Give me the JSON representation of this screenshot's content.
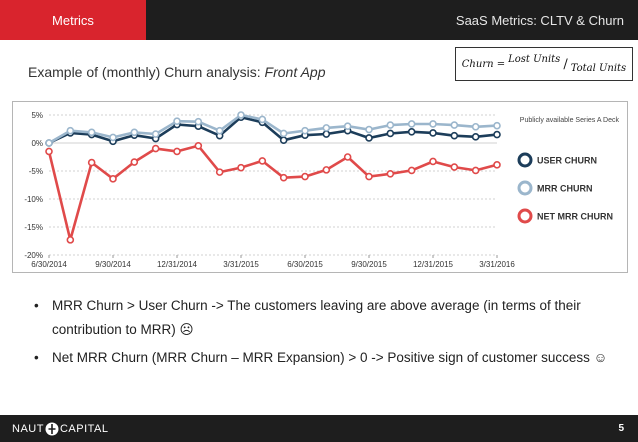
{
  "header": {
    "tab_label": "Metrics",
    "title": "SaaS Metrics: CLTV & Churn"
  },
  "formula": {
    "lhs": "Churn =",
    "numerator": "Lost Units",
    "denominator": "Total Units"
  },
  "subtitle": {
    "prefix": "Example of (monthly) Churn analysis: ",
    "company": "Front App"
  },
  "chart_data": {
    "type": "line",
    "source_note": "Publicly available Series A Deck",
    "x": [
      "6/30/2014",
      "7/31/2014",
      "8/31/2014",
      "9/30/2014",
      "10/31/2014",
      "11/30/2014",
      "12/31/2014",
      "1/31/2015",
      "2/28/2015",
      "3/31/2015",
      "4/30/2015",
      "5/31/2015",
      "6/30/2015",
      "7/31/2015",
      "8/31/2015",
      "9/30/2015",
      "10/31/2015",
      "11/30/2015",
      "12/31/2015",
      "1/31/2016",
      "2/29/2016",
      "3/31/2016"
    ],
    "xtick_labels": [
      "6/30/2014",
      "9/30/2014",
      "12/31/2014",
      "3/31/2015",
      "6/30/2015",
      "9/30/2015",
      "12/31/2015",
      "3/31/2016"
    ],
    "ytick_labels": [
      "5%",
      "0%",
      "-5%",
      "-10%",
      "-15%",
      "-20%"
    ],
    "ylim": [
      -20,
      5
    ],
    "grid": true,
    "legend_position": "right",
    "series": [
      {
        "name": "USER CHURN",
        "color": "#1c3d5a",
        "values": [
          0,
          1.8,
          1.5,
          0.3,
          1.4,
          0.8,
          3.3,
          3.0,
          1.3,
          4.6,
          3.7,
          0.5,
          1.4,
          1.6,
          2.2,
          0.9,
          1.7,
          2.0,
          1.8,
          1.3,
          1.1,
          1.5
        ]
      },
      {
        "name": "MRR CHURN",
        "color": "#9bb6cc",
        "values": [
          0,
          2.2,
          1.9,
          1.0,
          1.9,
          1.6,
          3.9,
          3.8,
          2.2,
          5.0,
          4.2,
          1.7,
          2.2,
          2.7,
          3.0,
          2.4,
          3.2,
          3.4,
          3.4,
          3.2,
          2.9,
          3.1
        ]
      },
      {
        "name": "NET MRR CHURN",
        "color": "#e04a4a",
        "values": [
          -1.5,
          -17.3,
          -3.5,
          -6.4,
          -3.4,
          -1.0,
          -1.5,
          -0.5,
          -5.2,
          -4.4,
          -3.2,
          -6.2,
          -6.0,
          -4.8,
          -2.5,
          -6.0,
          -5.5,
          -4.9,
          -3.3,
          -4.3,
          -4.9,
          -3.9
        ]
      }
    ]
  },
  "bullets": [
    {
      "marker": "•",
      "text": "MRR Churn > User Churn -> The customers leaving are above average (in terms of their contribution to MRR) ☹"
    },
    {
      "marker": "•",
      "text": "Net MRR Churn (MRR Churn – MRR Expansion) > 0 -> Positive sign of customer success ☺"
    }
  ],
  "footer": {
    "logo_left": "NAUT",
    "logo_right": "CAPITAL",
    "page_number": "5"
  },
  "colors": {
    "accent_red": "#d9242d",
    "bar_dark": "#1e1e1e"
  }
}
